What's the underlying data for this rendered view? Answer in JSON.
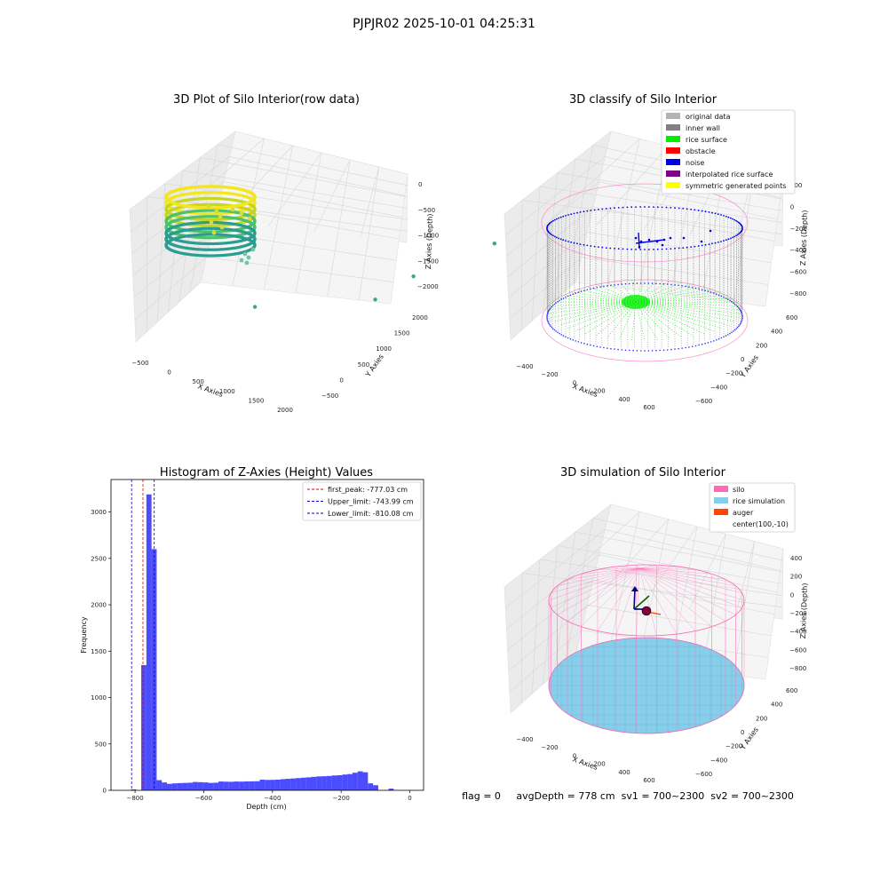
{
  "figure": {
    "suptitle": "PJPJR02 2025-10-01 04:25:31",
    "status_line": "flag = 0     avgDepth = 778 cm  sv1 = 700~2300  sv2 = 700~2300"
  },
  "chart_data": [
    {
      "type": "scatter3d",
      "title": "3D Plot of Silo Interior(row data)",
      "xlabel": "X Axies",
      "ylabel": "Y Axies",
      "zlabel": "Z Axies (Depth)",
      "x_ticks": [
        "−500",
        "0",
        "500",
        "1000",
        "1500",
        "2000"
      ],
      "y_ticks": [
        "−500",
        "0",
        "500",
        "1000",
        "1500",
        "2000"
      ],
      "z_ticks": [
        "0",
        "−500",
        "−1000",
        "−1500",
        "−2000"
      ],
      "xlim": [
        -700,
        2200
      ],
      "ylim": [
        -600,
        2100
      ],
      "zlim": [
        -2300,
        100
      ],
      "colormap": [
        "#2a9d8f",
        "#4fc26b",
        "#c6d61f",
        "#f4e61e"
      ],
      "outliers": [
        {
          "x": 1500,
          "y": 200,
          "z": -1500
        },
        {
          "x": 1700,
          "y": 700,
          "z": -1300
        },
        {
          "x": 2100,
          "y": 1800,
          "z": -1200
        },
        {
          "x": 400,
          "y": -200,
          "z": -1650
        }
      ]
    },
    {
      "type": "scatter3d",
      "title": "3D classify of Silo Interior",
      "xlabel": "X Axies",
      "ylabel": "Y Axies",
      "zlabel": "Z Axies (Depth)",
      "x_ticks": [
        "−400",
        "−200",
        "0",
        "200",
        "400",
        "600"
      ],
      "y_ticks": [
        "−600",
        "−400",
        "−200",
        "0",
        "200",
        "400",
        "600"
      ],
      "z_ticks": [
        "200",
        "0",
        "−200",
        "−400",
        "−600",
        "−800"
      ],
      "legend": [
        {
          "label": "original data",
          "color": "#b3b3b3"
        },
        {
          "label": "inner wall",
          "color": "#808080"
        },
        {
          "label": "rice surface",
          "color": "#00ee00"
        },
        {
          "label": "obstacle",
          "color": "#ff0000"
        },
        {
          "label": "noise",
          "color": "#0000ee"
        },
        {
          "label": "interpolated rice surface",
          "color": "#800080"
        },
        {
          "label": "symmetric generated points",
          "color": "#ffff00"
        }
      ],
      "legend_position": "top-right"
    },
    {
      "type": "bar",
      "title": "Histogram of Z-Axies (Height) Values",
      "xlabel": "Depth (cm)",
      "ylabel": "Frequency",
      "xlim": [
        -870,
        40
      ],
      "ylim": [
        0,
        3350
      ],
      "x_ticks": [
        -800,
        -600,
        -400,
        -200,
        0
      ],
      "y_ticks": [
        0,
        500,
        1000,
        1500,
        2000,
        2500,
        3000
      ],
      "x_tick_labels": [
        "−800",
        "−600",
        "−400",
        "−200",
        "0"
      ],
      "bar_color": "#0000ff",
      "bin_width": 15,
      "bin_start": -812,
      "values": [
        10,
        0,
        1350,
        3190,
        2600,
        110,
        85,
        70,
        75,
        78,
        80,
        82,
        90,
        88,
        85,
        80,
        82,
        95,
        93,
        92,
        95,
        94,
        96,
        97,
        98,
        115,
        112,
        113,
        115,
        120,
        124,
        128,
        132,
        136,
        140,
        145,
        150,
        152,
        155,
        160,
        163,
        170,
        175,
        190,
        205,
        195,
        75,
        55,
        0,
        0,
        18,
        0
      ],
      "vlines": [
        {
          "label": "first_peak: -777.03 cm",
          "x": -777.03,
          "color": "#dd0000"
        },
        {
          "label": "Upper_limit: -743.99 cm",
          "x": -743.99,
          "color": "#0000cc"
        },
        {
          "label": "Lower_limit: -810.08 cm",
          "x": -810.08,
          "color": "#0000cc"
        }
      ],
      "legend_position": "top-right"
    },
    {
      "type": "surface3d",
      "title": "3D simulation of Silo Interior",
      "xlabel": "X Axies",
      "ylabel": "Y Axies",
      "zlabel": "Z Axies (Depth)",
      "x_ticks": [
        "−400",
        "−200",
        "0",
        "200",
        "400",
        "600"
      ],
      "y_ticks": [
        "−600",
        "−400",
        "−200",
        "0",
        "200",
        "400",
        "600"
      ],
      "z_ticks": [
        "400",
        "200",
        "0",
        "−200",
        "−400",
        "−600",
        "−800"
      ],
      "legend": [
        {
          "label": "silo",
          "color": "#ff69b4"
        },
        {
          "label": "rice simulation",
          "color": "#87ceeb"
        },
        {
          "label": "auger",
          "color": "#ff4500"
        },
        {
          "label": "center(100,-10)",
          "color": ""
        }
      ],
      "legend_position": "top-right"
    }
  ]
}
